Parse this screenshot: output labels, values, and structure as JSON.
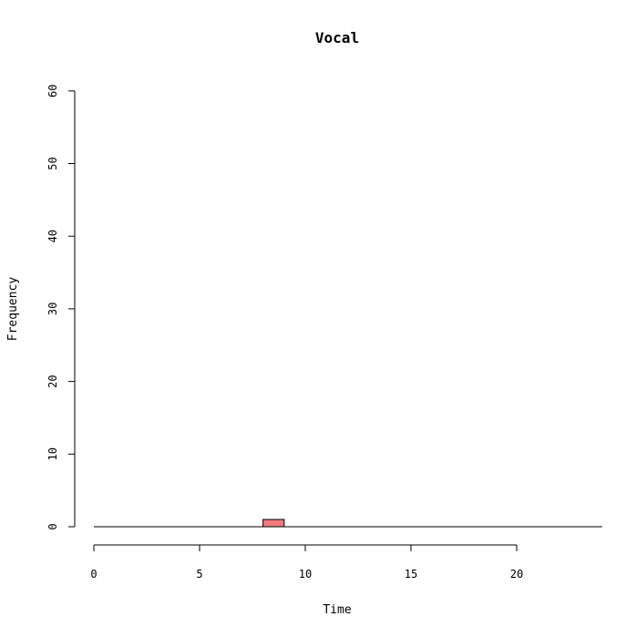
{
  "chart_data": {
    "type": "bar",
    "title": "Vocal",
    "xlabel": "Time",
    "ylabel": "Frequency",
    "xlim": [
      0,
      24
    ],
    "ylim": [
      0,
      60
    ],
    "x_axis_range": [
      0,
      20
    ],
    "x_ticks": [
      "0",
      "5",
      "10",
      "15",
      "20"
    ],
    "y_ticks": [
      "0",
      "10",
      "20",
      "30",
      "40",
      "50",
      "60"
    ],
    "bin_width": 1,
    "bins": [
      {
        "start": 0,
        "end": 1,
        "count": 0
      },
      {
        "start": 1,
        "end": 2,
        "count": 0
      },
      {
        "start": 2,
        "end": 3,
        "count": 0
      },
      {
        "start": 3,
        "end": 4,
        "count": 0
      },
      {
        "start": 4,
        "end": 5,
        "count": 0
      },
      {
        "start": 5,
        "end": 6,
        "count": 0
      },
      {
        "start": 6,
        "end": 7,
        "count": 0
      },
      {
        "start": 7,
        "end": 8,
        "count": 0
      },
      {
        "start": 8,
        "end": 9,
        "count": 1
      },
      {
        "start": 9,
        "end": 10,
        "count": 0
      },
      {
        "start": 10,
        "end": 11,
        "count": 0
      },
      {
        "start": 11,
        "end": 12,
        "count": 0
      },
      {
        "start": 12,
        "end": 13,
        "count": 0
      },
      {
        "start": 13,
        "end": 14,
        "count": 0
      },
      {
        "start": 14,
        "end": 15,
        "count": 0
      },
      {
        "start": 15,
        "end": 16,
        "count": 0
      },
      {
        "start": 16,
        "end": 17,
        "count": 0
      },
      {
        "start": 17,
        "end": 18,
        "count": 0
      },
      {
        "start": 18,
        "end": 19,
        "count": 0
      },
      {
        "start": 19,
        "end": 20,
        "count": 0
      },
      {
        "start": 20,
        "end": 21,
        "count": 0
      },
      {
        "start": 21,
        "end": 22,
        "count": 0
      },
      {
        "start": 22,
        "end": 23,
        "count": 0
      },
      {
        "start": 23,
        "end": 24,
        "count": 0
      }
    ],
    "bar_color": "#f07c80",
    "grid": false,
    "legend": "none"
  }
}
